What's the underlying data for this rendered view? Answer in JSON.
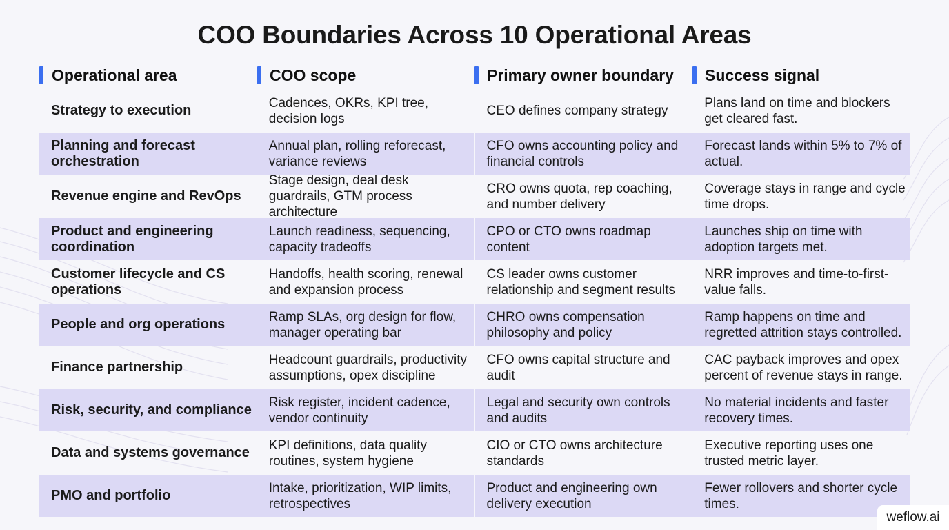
{
  "title": "COO Boundaries Across 10 Operational Areas",
  "accent_color": "#3b6ff0",
  "row_shade_color": "#dcd9f5",
  "headers": [
    "Operational area",
    "COO scope",
    "Primary owner boundary",
    "Success signal"
  ],
  "rows": [
    {
      "area": "Strategy to execution",
      "scope": "Cadences, OKRs, KPI tree, decision logs",
      "owner": "CEO defines company strategy",
      "signal": "Plans land on time and blockers get cleared fast."
    },
    {
      "area": "Planning and forecast orchestration",
      "scope": "Annual plan, rolling reforecast, variance reviews",
      "owner": "CFO owns accounting policy and financial controls",
      "signal": "Forecast lands within 5% to 7% of actual."
    },
    {
      "area": "Revenue engine and RevOps",
      "scope": "Stage design, deal desk guardrails, GTM process architecture",
      "owner": "CRO owns quota, rep coaching, and number delivery",
      "signal": "Coverage stays in range and cycle time drops."
    },
    {
      "area": "Product and engineering coordination",
      "scope": "Launch readiness, sequencing, capacity tradeoffs",
      "owner": "CPO or CTO owns roadmap content",
      "signal": "Launches ship on time with adoption targets met."
    },
    {
      "area": "Customer lifecycle and CS operations",
      "scope": "Handoffs, health scoring, renewal and expansion process",
      "owner": "CS leader owns customer relationship and segment results",
      "signal": "NRR improves and time-to-first-value falls."
    },
    {
      "area": "People and org operations",
      "scope": "Ramp SLAs, org design for flow, manager operating bar",
      "owner": "CHRO owns compensation philosophy and policy",
      "signal": "Ramp happens on time and regretted attrition stays controlled."
    },
    {
      "area": "Finance partnership",
      "scope": "Headcount guardrails, productivity assumptions, opex discipline",
      "owner": "CFO owns capital structure and audit",
      "signal": "CAC payback improves and opex percent of revenue stays in range."
    },
    {
      "area": "Risk, security, and compliance",
      "scope": "Risk register, incident cadence, vendor continuity",
      "owner": "Legal and security own controls and audits",
      "signal": "No material incidents and faster recovery times."
    },
    {
      "area": "Data and systems governance",
      "scope": "KPI definitions, data quality routines, system hygiene",
      "owner": "CIO or CTO owns architecture standards",
      "signal": "Executive reporting uses one trusted metric layer."
    },
    {
      "area": "PMO and portfolio",
      "scope": "Intake, prioritization, WIP limits, retrospectives",
      "owner": "Product and engineering own delivery execution",
      "signal": "Fewer rollovers and shorter cycle times."
    }
  ],
  "watermark": "weflow.ai"
}
